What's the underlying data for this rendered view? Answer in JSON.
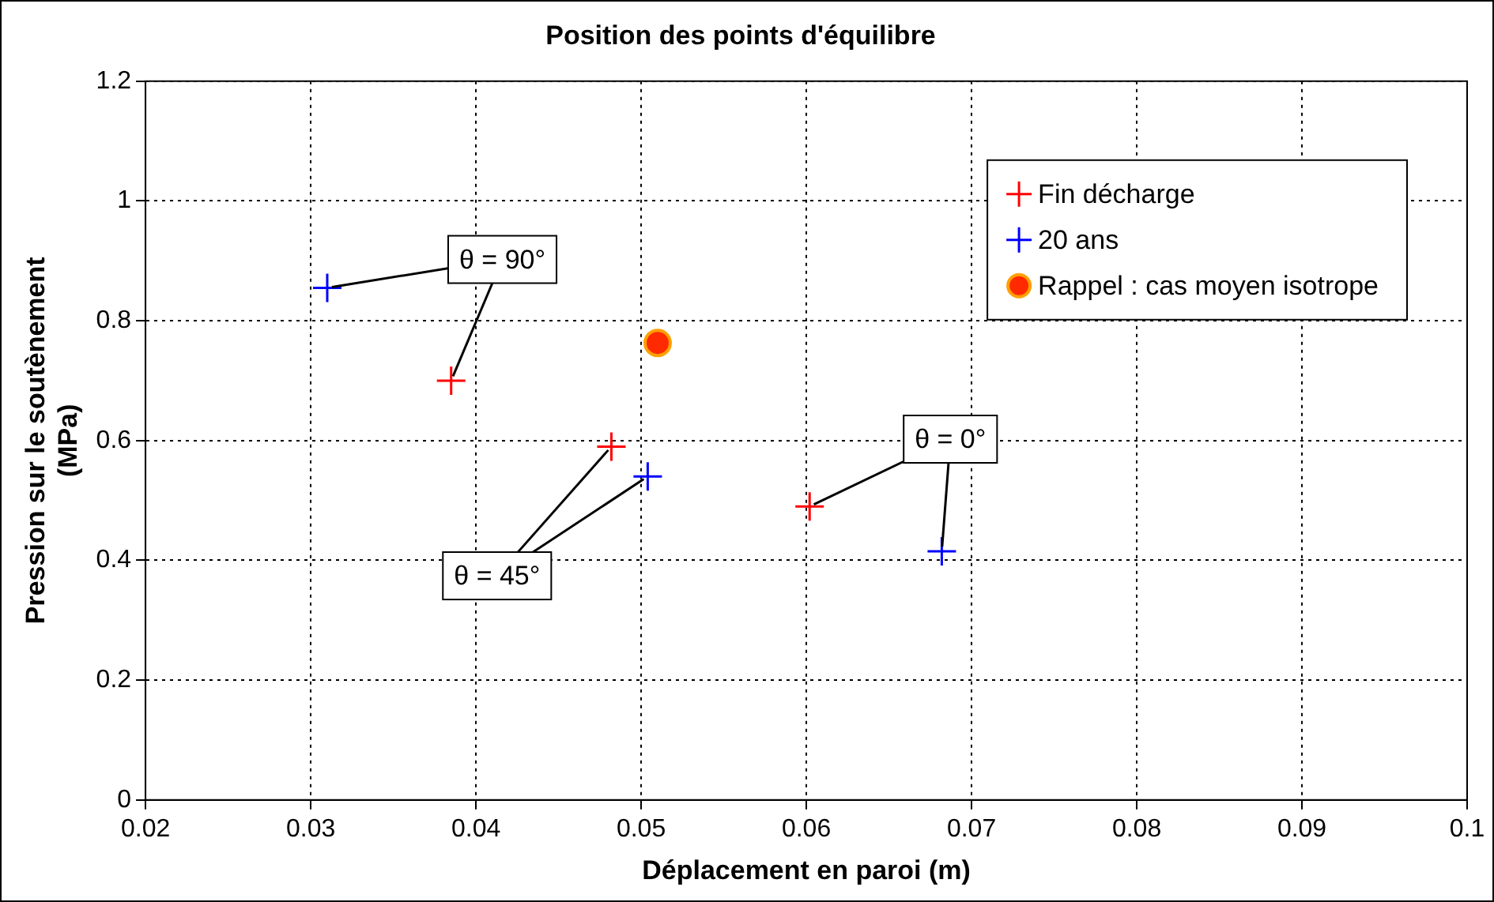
{
  "chart_data": {
    "type": "scatter",
    "title": "Position des points d'équilibre",
    "xlabel": "Déplacement en paroi (m)",
    "ylabel": "Pression sur le soutènement (MPa)",
    "series": [
      {
        "name": "Fin décharge",
        "color": "#ff0000",
        "marker": "cross",
        "x": [
          0.0385,
          0.0482,
          0.0602
        ],
        "values": [
          0.7,
          0.59,
          0.49
        ]
      },
      {
        "name": "20 ans",
        "color": "#0000ff",
        "marker": "cross",
        "x": [
          0.031,
          0.0504,
          0.0682
        ],
        "values": [
          0.855,
          0.54,
          0.415
        ]
      },
      {
        "name": "Rappel : cas moyen isotrope",
        "color": "#ff2a00",
        "marker": "circle",
        "x": [
          0.051
        ],
        "values": [
          0.763
        ]
      }
    ],
    "annotations": [
      {
        "text": "θ = 90°",
        "x": 0.0385,
        "y": 0.7
      },
      {
        "text": "θ = 45°",
        "x": 0.0482,
        "y": 0.59
      },
      {
        "text": "θ = 0°",
        "x": 0.0602,
        "y": 0.49
      }
    ],
    "xlim": [
      0.02,
      0.1
    ],
    "xticks": [
      0.02,
      0.03,
      0.04,
      0.05,
      0.06,
      0.07,
      0.08,
      0.09,
      0.1
    ],
    "ylim": [
      0,
      1.2
    ],
    "yticks": [
      0,
      0.2,
      0.4,
      0.6,
      0.8,
      1,
      1.2
    ],
    "grid": true,
    "legend": "top right"
  }
}
